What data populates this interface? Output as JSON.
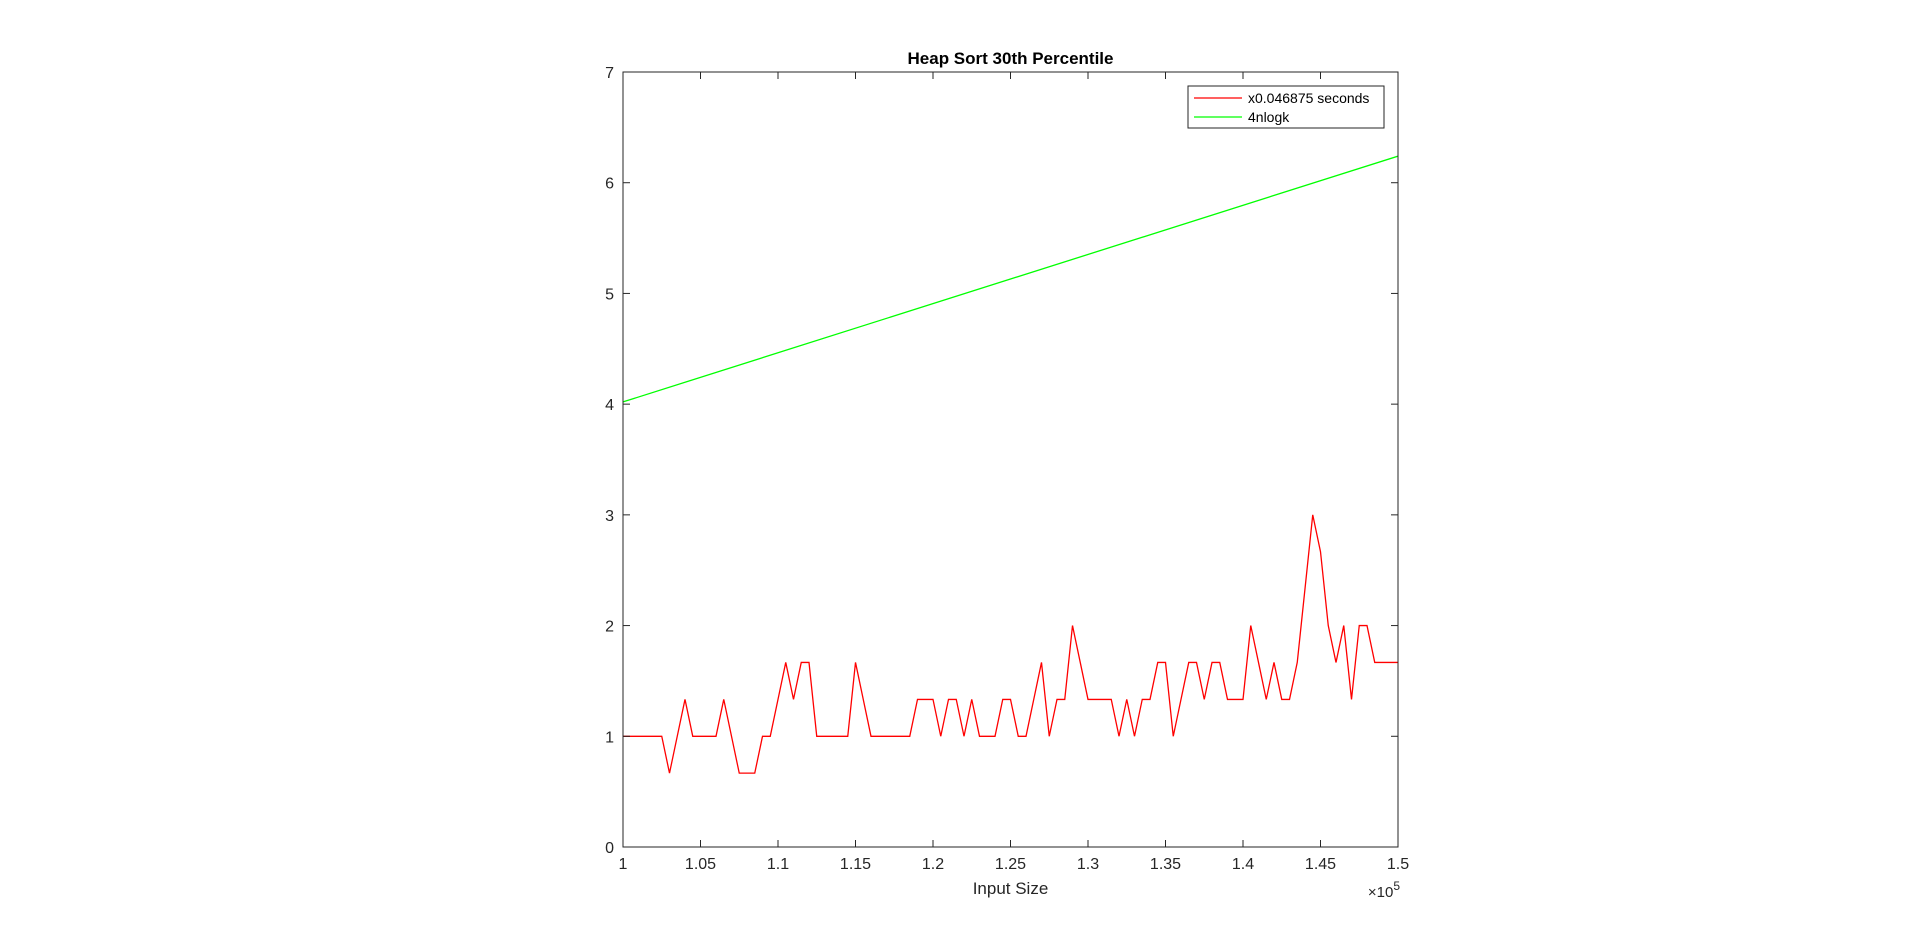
{
  "chart_data": {
    "type": "line",
    "title": "Heap Sort 30th Percentile",
    "xlabel": "Input Size",
    "ylabel": "",
    "x_exponent_base": "×10",
    "x_exponent_power": "5",
    "xlim": [
      1.0,
      1.5
    ],
    "ylim": [
      0,
      7
    ],
    "x_ticks": [
      1.0,
      1.05,
      1.1,
      1.15,
      1.2,
      1.25,
      1.3,
      1.35,
      1.4,
      1.45,
      1.5
    ],
    "x_tick_labels": [
      "1",
      "1.05",
      "1.1",
      "1.15",
      "1.2",
      "1.25",
      "1.3",
      "1.35",
      "1.4",
      "1.45",
      "1.5"
    ],
    "y_ticks": [
      0,
      1,
      2,
      3,
      4,
      5,
      6,
      7
    ],
    "y_tick_labels": [
      "0",
      "1",
      "2",
      "3",
      "4",
      "5",
      "6",
      "7"
    ],
    "grid": false,
    "legend_position": "top-right",
    "series": [
      {
        "name": "x0.046875 seconds",
        "color": "#ff0000",
        "x": [
          1.0,
          1.005,
          1.01,
          1.015,
          1.02,
          1.025,
          1.03,
          1.035,
          1.04,
          1.045,
          1.05,
          1.055,
          1.06,
          1.065,
          1.07,
          1.075,
          1.08,
          1.085,
          1.09,
          1.095,
          1.1,
          1.105,
          1.11,
          1.115,
          1.12,
          1.125,
          1.13,
          1.135,
          1.14,
          1.145,
          1.15,
          1.155,
          1.16,
          1.165,
          1.17,
          1.175,
          1.18,
          1.185,
          1.19,
          1.195,
          1.2,
          1.205,
          1.21,
          1.215,
          1.22,
          1.225,
          1.23,
          1.235,
          1.24,
          1.245,
          1.25,
          1.255,
          1.26,
          1.265,
          1.27,
          1.275,
          1.28,
          1.285,
          1.29,
          1.295,
          1.3,
          1.305,
          1.31,
          1.315,
          1.32,
          1.325,
          1.33,
          1.335,
          1.34,
          1.345,
          1.35,
          1.355,
          1.36,
          1.365,
          1.37,
          1.375,
          1.38,
          1.385,
          1.39,
          1.395,
          1.4,
          1.405,
          1.41,
          1.415,
          1.42,
          1.425,
          1.43,
          1.435,
          1.44,
          1.445,
          1.45,
          1.455,
          1.46,
          1.465,
          1.47,
          1.475,
          1.48,
          1.485,
          1.49,
          1.495,
          1.5
        ],
        "values": [
          1,
          1,
          1,
          1,
          1,
          1,
          0.667,
          1,
          1.333,
          1,
          1,
          1,
          1,
          1.333,
          1,
          0.667,
          0.667,
          0.667,
          1,
          1,
          1.333,
          1.667,
          1.333,
          1.667,
          1.667,
          1,
          1,
          1,
          1,
          1,
          1.667,
          1.333,
          1,
          1,
          1,
          1,
          1,
          1,
          1.333,
          1.333,
          1.333,
          1,
          1.333,
          1.333,
          1,
          1.333,
          1,
          1,
          1,
          1.333,
          1.333,
          1,
          1,
          1.333,
          1.667,
          1,
          1.333,
          1.333,
          2,
          1.667,
          1.333,
          1.333,
          1.333,
          1.333,
          1,
          1.333,
          1,
          1.333,
          1.333,
          1.667,
          1.667,
          1,
          1.333,
          1.667,
          1.667,
          1.333,
          1.667,
          1.667,
          1.333,
          1.333,
          1.333,
          2,
          1.667,
          1.333,
          1.667,
          1.333,
          1.333,
          1.667,
          2.333,
          3,
          2.667,
          2,
          1.667,
          2,
          1.333,
          2,
          2,
          1.667,
          1.667,
          1.667,
          1.667
        ]
      },
      {
        "name": "4nlogk",
        "color": "#00ff00",
        "x": [
          1.0,
          1.5
        ],
        "values": [
          4.02,
          6.24
        ]
      }
    ]
  }
}
